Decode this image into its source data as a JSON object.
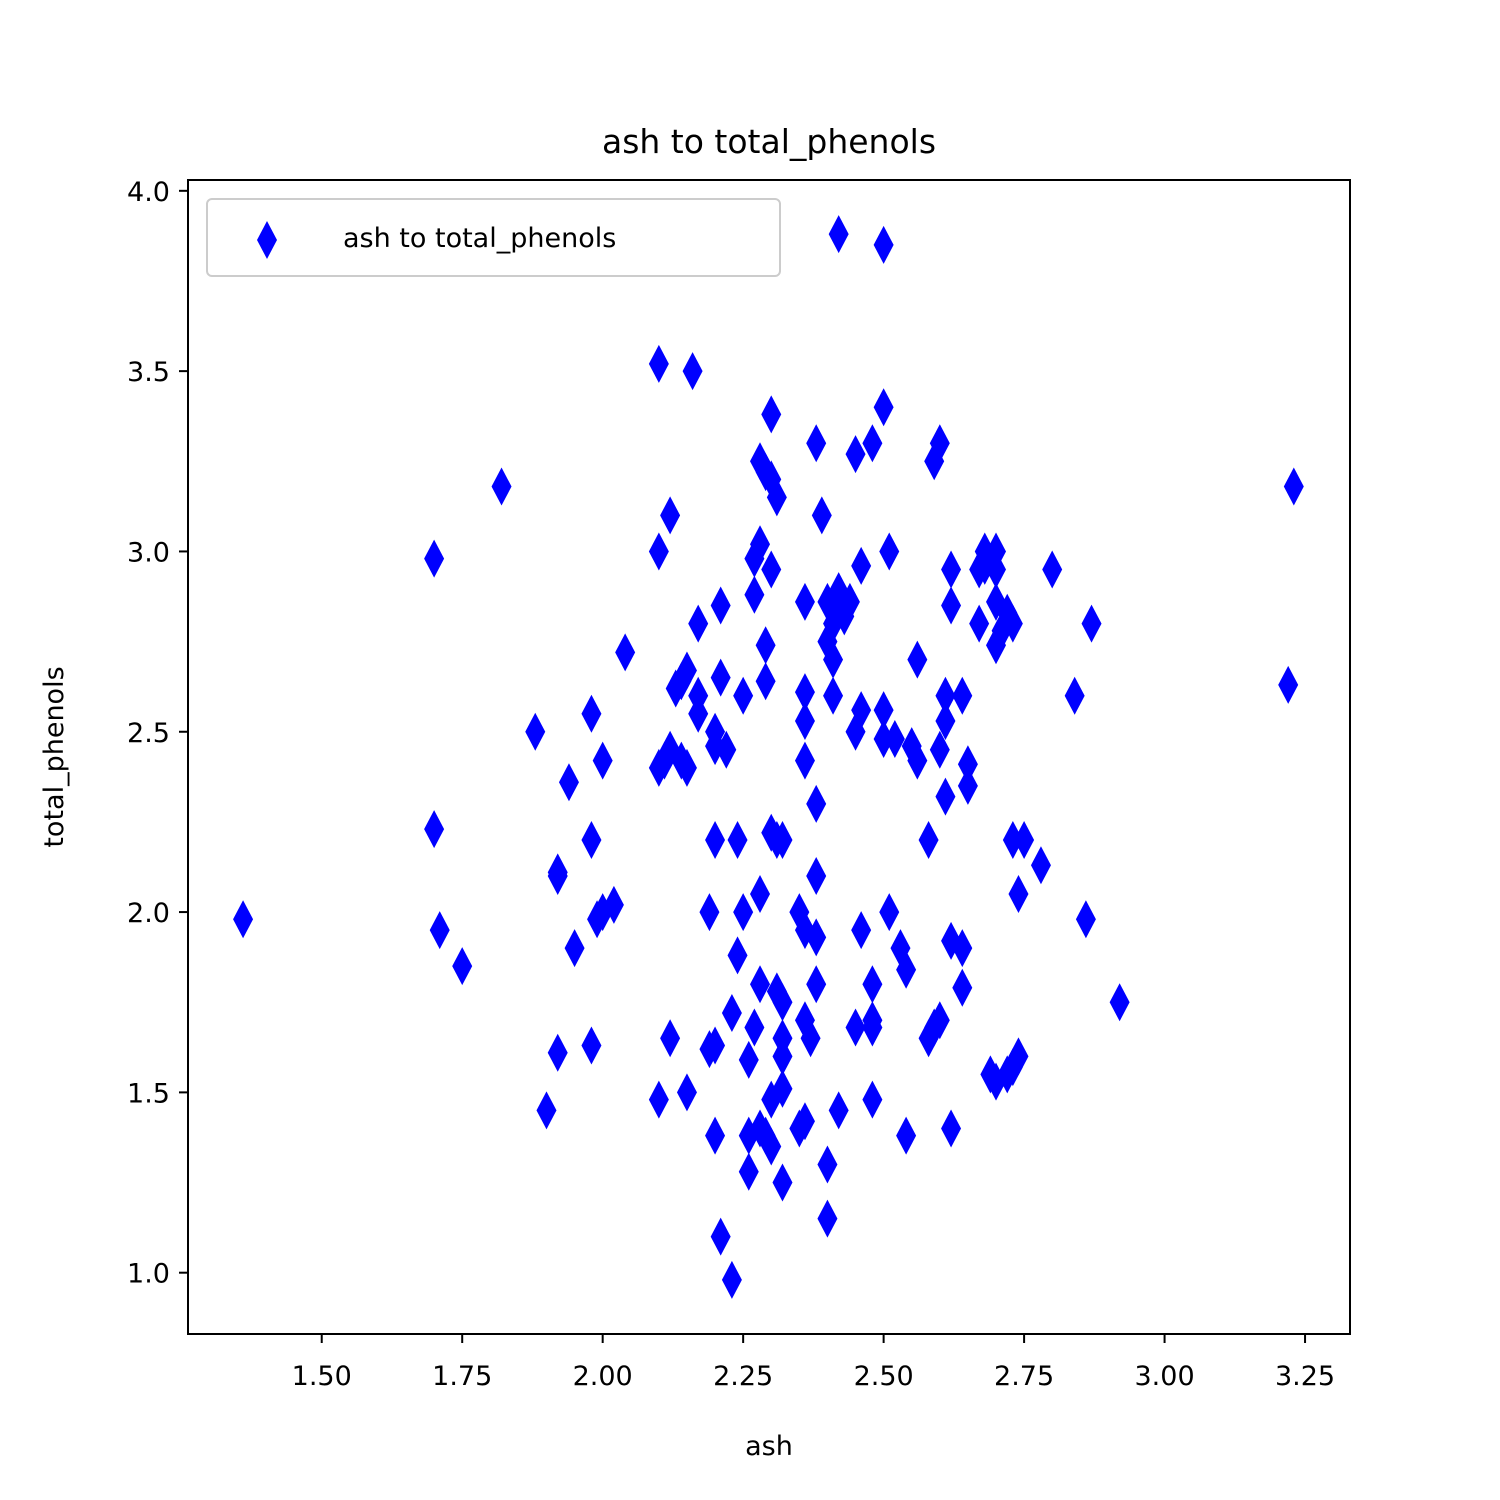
{
  "chart_data": {
    "type": "scatter",
    "title": "ash to total_phenols",
    "xlabel": "ash",
    "ylabel": "total_phenols",
    "xlim": [
      1.262,
      3.33
    ],
    "ylim": [
      0.83,
      4.03
    ],
    "xticks": [
      "1.50",
      "1.75",
      "2.00",
      "2.25",
      "2.50",
      "2.75",
      "3.00",
      "3.25"
    ],
    "yticks": [
      "1.0",
      "1.5",
      "2.0",
      "2.5",
      "3.0",
      "3.5",
      "4.0"
    ],
    "marker": "thin_diamond",
    "color": "#0000ff",
    "grid": false,
    "legend": {
      "position": "upper-left",
      "entries": [
        "ash to total_phenols"
      ]
    },
    "series": [
      {
        "name": "ash to total_phenols",
        "points": [
          [
            1.36,
            1.98
          ],
          [
            1.7,
            2.98
          ],
          [
            1.7,
            2.23
          ],
          [
            1.71,
            1.95
          ],
          [
            1.75,
            1.85
          ],
          [
            1.82,
            3.18
          ],
          [
            1.88,
            2.5
          ],
          [
            1.9,
            1.45
          ],
          [
            1.92,
            2.11
          ],
          [
            1.92,
            2.1
          ],
          [
            1.92,
            1.61
          ],
          [
            1.94,
            2.36
          ],
          [
            1.95,
            1.9
          ],
          [
            1.98,
            2.55
          ],
          [
            1.98,
            2.2
          ],
          [
            1.98,
            1.63
          ],
          [
            1.99,
            1.98
          ],
          [
            2.0,
            2.42
          ],
          [
            2.0,
            2.0
          ],
          [
            2.02,
            2.02
          ],
          [
            2.04,
            2.72
          ],
          [
            2.1,
            3.52
          ],
          [
            2.1,
            3.0
          ],
          [
            2.1,
            2.4
          ],
          [
            2.1,
            1.48
          ],
          [
            2.11,
            2.42
          ],
          [
            2.12,
            3.1
          ],
          [
            2.12,
            2.45
          ],
          [
            2.12,
            1.65
          ],
          [
            2.13,
            2.62
          ],
          [
            2.14,
            2.64
          ],
          [
            2.14,
            2.42
          ],
          [
            2.15,
            2.67
          ],
          [
            2.15,
            2.4
          ],
          [
            2.15,
            1.5
          ],
          [
            2.16,
            3.5
          ],
          [
            2.17,
            2.8
          ],
          [
            2.17,
            2.55
          ],
          [
            2.17,
            2.6
          ],
          [
            2.19,
            2.0
          ],
          [
            2.19,
            1.62
          ],
          [
            2.2,
            2.5
          ],
          [
            2.2,
            2.46
          ],
          [
            2.2,
            2.2
          ],
          [
            2.2,
            1.63
          ],
          [
            2.2,
            1.38
          ],
          [
            2.21,
            2.85
          ],
          [
            2.21,
            2.65
          ],
          [
            2.21,
            1.1
          ],
          [
            2.22,
            2.45
          ],
          [
            2.23,
            1.72
          ],
          [
            2.23,
            0.98
          ],
          [
            2.24,
            2.2
          ],
          [
            2.24,
            1.88
          ],
          [
            2.25,
            2.6
          ],
          [
            2.25,
            2.0
          ],
          [
            2.26,
            1.59
          ],
          [
            2.26,
            1.38
          ],
          [
            2.26,
            1.28
          ],
          [
            2.27,
            2.98
          ],
          [
            2.27,
            2.88
          ],
          [
            2.27,
            1.68
          ],
          [
            2.28,
            3.25
          ],
          [
            2.28,
            3.02
          ],
          [
            2.28,
            2.05
          ],
          [
            2.28,
            1.8
          ],
          [
            2.28,
            1.4
          ],
          [
            2.29,
            3.22
          ],
          [
            2.29,
            2.74
          ],
          [
            2.29,
            2.64
          ],
          [
            2.29,
            1.38
          ],
          [
            2.3,
            3.38
          ],
          [
            2.3,
            3.2
          ],
          [
            2.3,
            2.95
          ],
          [
            2.3,
            2.22
          ],
          [
            2.3,
            1.48
          ],
          [
            2.3,
            1.35
          ],
          [
            2.31,
            3.15
          ],
          [
            2.31,
            2.2
          ],
          [
            2.31,
            1.78
          ],
          [
            2.32,
            2.2
          ],
          [
            2.32,
            1.75
          ],
          [
            2.32,
            1.65
          ],
          [
            2.32,
            1.6
          ],
          [
            2.32,
            1.51
          ],
          [
            2.32,
            1.25
          ],
          [
            2.35,
            2.0
          ],
          [
            2.35,
            1.4
          ],
          [
            2.36,
            2.86
          ],
          [
            2.36,
            2.61
          ],
          [
            2.36,
            2.53
          ],
          [
            2.36,
            2.42
          ],
          [
            2.36,
            1.95
          ],
          [
            2.36,
            1.7
          ],
          [
            2.36,
            1.42
          ],
          [
            2.37,
            1.65
          ],
          [
            2.38,
            3.3
          ],
          [
            2.38,
            2.3
          ],
          [
            2.38,
            2.1
          ],
          [
            2.38,
            1.93
          ],
          [
            2.38,
            1.8
          ],
          [
            2.39,
            3.1
          ],
          [
            2.4,
            2.86
          ],
          [
            2.4,
            2.75
          ],
          [
            2.4,
            1.3
          ],
          [
            2.4,
            1.15
          ],
          [
            2.41,
            2.8
          ],
          [
            2.41,
            2.7
          ],
          [
            2.41,
            2.6
          ],
          [
            2.42,
            3.88
          ],
          [
            2.42,
            2.89
          ],
          [
            2.42,
            2.85
          ],
          [
            2.42,
            1.45
          ],
          [
            2.43,
            2.82
          ],
          [
            2.44,
            2.86
          ],
          [
            2.45,
            3.27
          ],
          [
            2.45,
            2.5
          ],
          [
            2.45,
            1.68
          ],
          [
            2.46,
            2.96
          ],
          [
            2.46,
            2.56
          ],
          [
            2.46,
            1.95
          ],
          [
            2.48,
            3.3
          ],
          [
            2.48,
            1.8
          ],
          [
            2.48,
            1.7
          ],
          [
            2.48,
            1.68
          ],
          [
            2.48,
            1.48
          ],
          [
            2.5,
            3.85
          ],
          [
            2.5,
            3.4
          ],
          [
            2.5,
            2.56
          ],
          [
            2.5,
            2.48
          ],
          [
            2.51,
            3.0
          ],
          [
            2.51,
            2.0
          ],
          [
            2.52,
            2.48
          ],
          [
            2.53,
            1.9
          ],
          [
            2.54,
            1.84
          ],
          [
            2.54,
            1.38
          ],
          [
            2.55,
            2.46
          ],
          [
            2.56,
            2.7
          ],
          [
            2.56,
            2.42
          ],
          [
            2.58,
            2.2
          ],
          [
            2.58,
            1.65
          ],
          [
            2.59,
            3.25
          ],
          [
            2.59,
            1.68
          ],
          [
            2.6,
            3.3
          ],
          [
            2.6,
            2.45
          ],
          [
            2.6,
            1.7
          ],
          [
            2.61,
            2.6
          ],
          [
            2.61,
            2.53
          ],
          [
            2.61,
            2.32
          ],
          [
            2.62,
            2.95
          ],
          [
            2.62,
            2.85
          ],
          [
            2.62,
            1.92
          ],
          [
            2.62,
            1.4
          ],
          [
            2.64,
            2.6
          ],
          [
            2.64,
            1.9
          ],
          [
            2.64,
            1.79
          ],
          [
            2.65,
            2.41
          ],
          [
            2.65,
            2.35
          ],
          [
            2.67,
            2.95
          ],
          [
            2.67,
            2.8
          ],
          [
            2.68,
            3.0
          ],
          [
            2.68,
            2.96
          ],
          [
            2.69,
            1.55
          ],
          [
            2.7,
            3.0
          ],
          [
            2.7,
            2.95
          ],
          [
            2.7,
            2.86
          ],
          [
            2.7,
            2.74
          ],
          [
            2.7,
            1.53
          ],
          [
            2.71,
            2.78
          ],
          [
            2.72,
            2.83
          ],
          [
            2.72,
            1.55
          ],
          [
            2.73,
            2.8
          ],
          [
            2.73,
            2.2
          ],
          [
            2.73,
            1.57
          ],
          [
            2.74,
            2.05
          ],
          [
            2.74,
            1.6
          ],
          [
            2.75,
            2.2
          ],
          [
            2.78,
            2.13
          ],
          [
            2.8,
            2.95
          ],
          [
            2.84,
            2.6
          ],
          [
            2.86,
            1.98
          ],
          [
            2.87,
            2.8
          ],
          [
            2.92,
            1.75
          ],
          [
            3.22,
            2.63
          ],
          [
            3.23,
            3.18
          ]
        ]
      }
    ]
  }
}
